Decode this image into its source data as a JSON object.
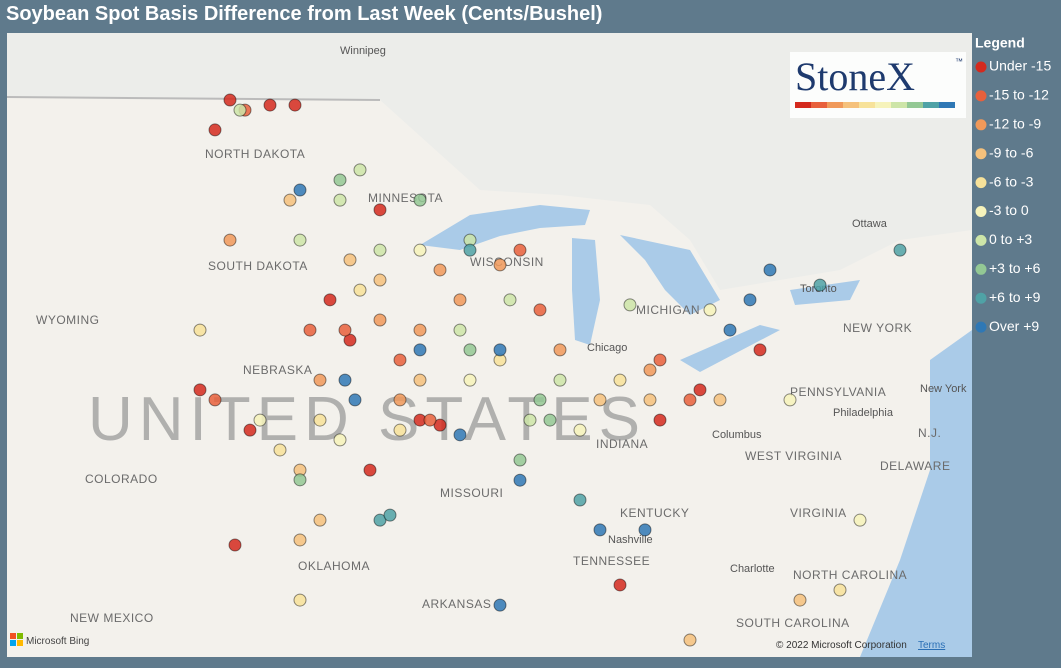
{
  "header": {
    "title": "Soybean Spot Basis Difference from Last Week (Cents/Bushel)"
  },
  "logo": {
    "text": "StoneX",
    "mark": "™"
  },
  "legend": {
    "title": "Legend",
    "items": [
      {
        "label": "Under -15",
        "color": "#d42a1e",
        "points": [
          [
            -102.23,
            48.74
          ],
          [
            -100.63,
            48.6
          ],
          [
            -102.83,
            47.91
          ],
          [
            -98.23,
            43.19
          ],
          [
            -97.43,
            42.07
          ],
          [
            -94.63,
            39.85
          ],
          [
            -93.83,
            39.71
          ],
          [
            -103.43,
            40.69
          ],
          [
            -101.43,
            39.57
          ],
          [
            -96.63,
            38.46
          ],
          [
            -102.03,
            36.38
          ],
          [
            -86.63,
            35.27
          ],
          [
            -85.03,
            39.85
          ],
          [
            -83.43,
            40.69
          ],
          [
            -81.03,
            41.8
          ],
          [
            -99.63,
            48.6
          ],
          [
            -96.23,
            45.69
          ]
        ]
      },
      {
        "label": "-15 to -12",
        "color": "#e8603c",
        "points": [
          [
            -101.63,
            48.46
          ],
          [
            -99.03,
            42.35
          ],
          [
            -94.23,
            39.85
          ],
          [
            -97.63,
            42.35
          ],
          [
            -83.83,
            40.41
          ],
          [
            -90.63,
            44.57
          ],
          [
            -102.83,
            40.41
          ],
          [
            -95.43,
            41.52
          ],
          [
            -85.03,
            41.52
          ],
          [
            -89.83,
            42.91
          ]
        ]
      },
      {
        "label": "-12 to -9",
        "color": "#f0995a",
        "points": [
          [
            -94.63,
            42.35
          ],
          [
            -93.03,
            43.19
          ],
          [
            -91.43,
            44.16
          ],
          [
            -96.23,
            42.63
          ],
          [
            -89.03,
            41.8
          ],
          [
            -85.43,
            41.24
          ],
          [
            -102.23,
            44.85
          ],
          [
            -93.83,
            44.02
          ],
          [
            -98.63,
            40.96
          ],
          [
            -95.43,
            40.41
          ]
        ]
      },
      {
        "label": "-9 to -6",
        "color": "#f5c17c",
        "points": [
          [
            -98.63,
            37.07
          ],
          [
            -99.43,
            38.46
          ],
          [
            -94.63,
            40.96
          ],
          [
            -87.43,
            40.41
          ],
          [
            -82.63,
            40.41
          ],
          [
            -97.43,
            44.3
          ],
          [
            -99.83,
            45.96
          ],
          [
            -79.43,
            34.85
          ],
          [
            -83.83,
            33.74
          ],
          [
            -85.43,
            40.41
          ],
          [
            -96.23,
            43.74
          ],
          [
            -99.43,
            36.52
          ]
        ]
      },
      {
        "label": "-6 to -3",
        "color": "#f7e29a",
        "points": [
          [
            -98.63,
            39.85
          ],
          [
            -100.23,
            39.02
          ],
          [
            -97.03,
            43.46
          ],
          [
            -91.43,
            41.52
          ],
          [
            -86.63,
            40.96
          ],
          [
            -77.83,
            35.13
          ],
          [
            -99.43,
            34.85
          ],
          [
            -95.43,
            39.57
          ],
          [
            -103.43,
            42.35
          ]
        ]
      },
      {
        "label": "-3 to 0",
        "color": "#f6f3bb",
        "points": [
          [
            -94.63,
            44.57
          ],
          [
            -97.83,
            39.3
          ],
          [
            -92.63,
            40.96
          ],
          [
            -83.03,
            42.91
          ],
          [
            -88.23,
            39.57
          ],
          [
            -101.03,
            39.85
          ],
          [
            -77.03,
            37.07
          ],
          [
            -79.83,
            40.41
          ]
        ]
      },
      {
        "label": "0 to +3",
        "color": "#cde5a8",
        "points": [
          [
            -97.83,
            45.96
          ],
          [
            -99.43,
            44.85
          ],
          [
            -92.63,
            44.85
          ],
          [
            -90.23,
            39.85
          ],
          [
            -89.03,
            40.96
          ],
          [
            -96.23,
            44.57
          ],
          [
            -101.83,
            48.46
          ],
          [
            -93.03,
            42.35
          ],
          [
            -91.03,
            43.19
          ],
          [
            -86.23,
            43.05
          ],
          [
            -97.03,
            46.8
          ]
        ]
      },
      {
        "label": "+3 to +6",
        "color": "#93c894",
        "points": [
          [
            -97.83,
            46.52
          ],
          [
            -89.43,
            39.85
          ],
          [
            -90.63,
            38.74
          ],
          [
            -89.83,
            40.41
          ],
          [
            -99.43,
            38.19
          ],
          [
            -94.63,
            45.96
          ],
          [
            -92.63,
            41.8
          ]
        ]
      },
      {
        "label": "+6 to +9",
        "color": "#4fa2a6",
        "points": [
          [
            -96.23,
            37.07
          ],
          [
            -88.23,
            37.63
          ],
          [
            -75.43,
            44.57
          ],
          [
            -78.63,
            43.6
          ],
          [
            -92.63,
            44.57
          ],
          [
            -95.83,
            37.21
          ]
        ]
      },
      {
        "label": "Over +9",
        "color": "#2f78b5",
        "points": [
          [
            -97.63,
            40.96
          ],
          [
            -94.63,
            41.8
          ],
          [
            -90.63,
            38.18
          ],
          [
            -87.43,
            36.8
          ],
          [
            -82.23,
            42.35
          ],
          [
            -81.43,
            43.19
          ],
          [
            -80.63,
            44.02
          ],
          [
            -99.43,
            46.24
          ],
          [
            -91.43,
            41.8
          ],
          [
            -97.23,
            40.41
          ],
          [
            -91.43,
            34.71
          ],
          [
            -85.63,
            36.8
          ],
          [
            -93.03,
            39.44
          ]
        ]
      }
    ]
  },
  "map": {
    "country": "UNITED STATES",
    "labels": [
      "Winnipeg",
      "NORTH DAKOTA",
      "MINNESOTA",
      "SOUTH DAKOTA",
      "WYOMING",
      "NEBRASKA",
      "COLORADO",
      "NEW MEXICO",
      "OKLAHOMA",
      "ARKANSAS",
      "MISSOURI",
      "KENTUCKY",
      "TENNESSEE",
      "Nashville",
      "Chicago",
      "MICHIGAN",
      "Columbus",
      "INDIANA",
      "WEST VIRGINIA",
      "VIRGINIA",
      "NORTH CAROLINA",
      "Charlotte",
      "SOUTH CAROLINA",
      "PENNSYLVANIA",
      "Philadelphia",
      "NEW YORK",
      "New York",
      "Ottawa",
      "DELAWARE",
      "N.J.",
      "Toronto",
      "WISCONSIN"
    ],
    "attribution": "Microsoft Bing",
    "copyright": "© 2022 Microsoft Corporation",
    "terms": "Terms"
  }
}
